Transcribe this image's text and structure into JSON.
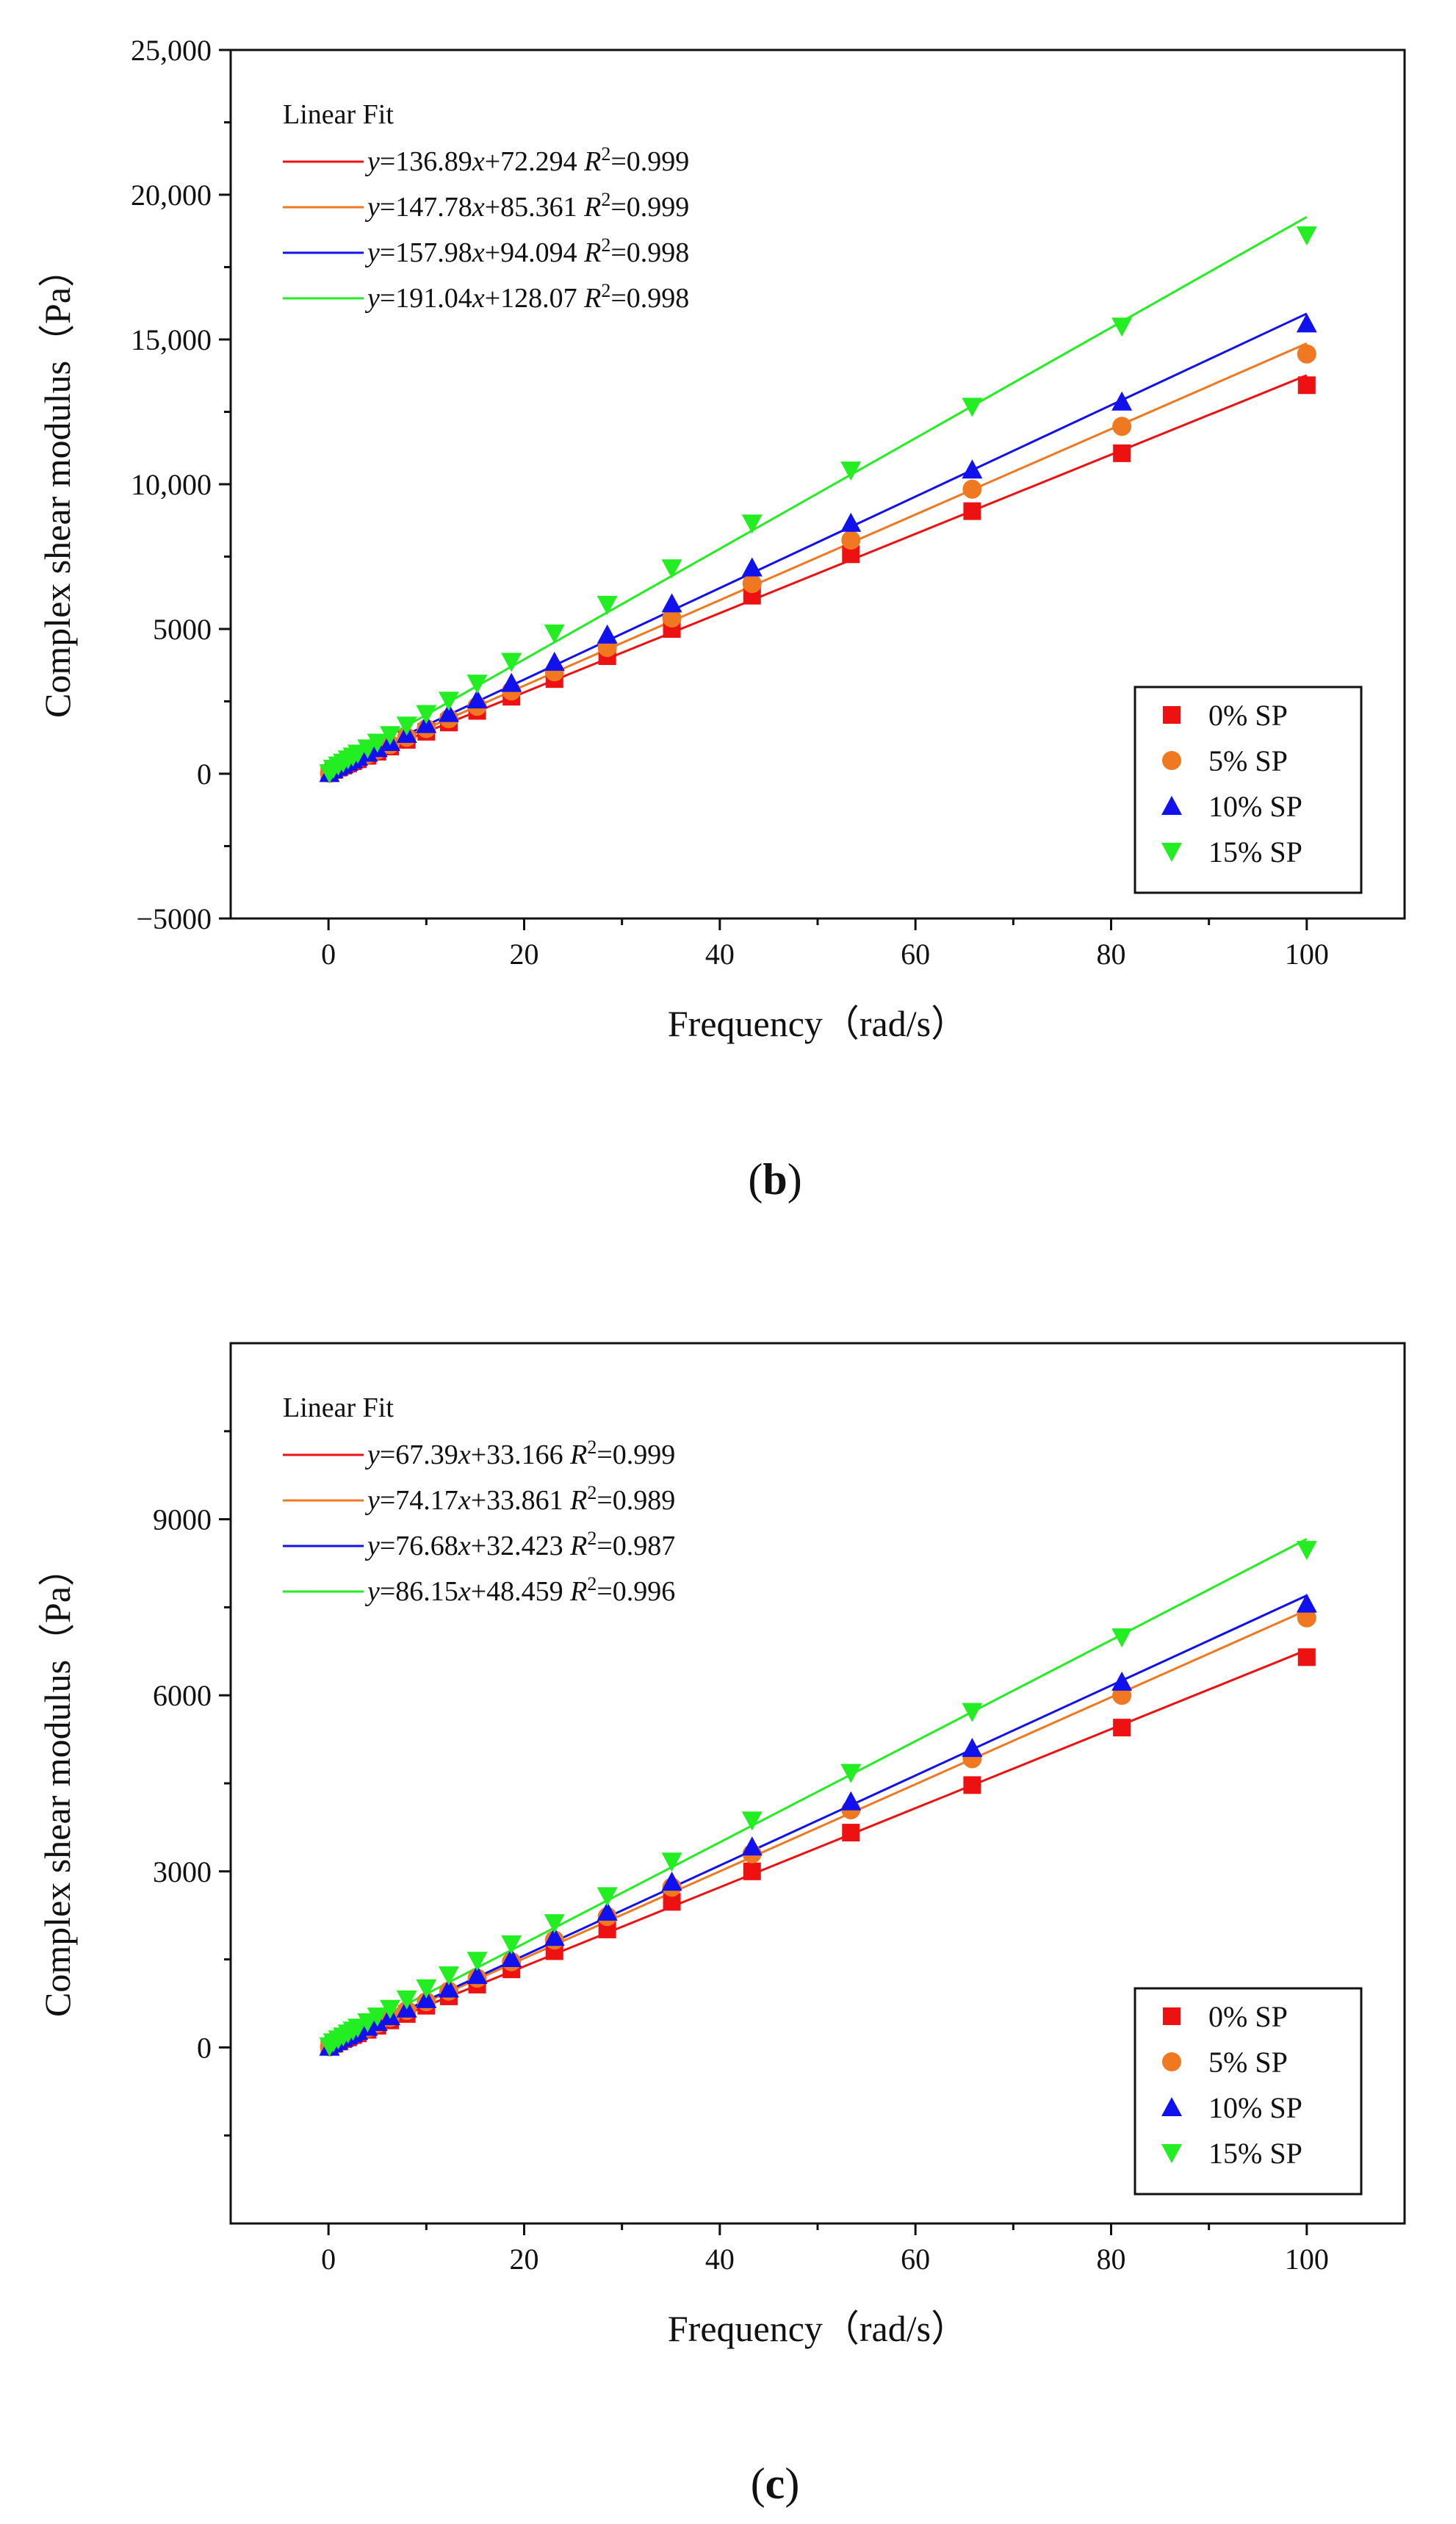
{
  "chart_data": [
    {
      "type": "scatter",
      "panel_label": "b",
      "xlabel": "Frequency（rad/s）",
      "ylabel": "Complex shear modulus（Pa）",
      "xlim": [
        -10,
        110
      ],
      "ylim": [
        -5000,
        25000
      ],
      "x_ticks": [
        0,
        20,
        40,
        60,
        80,
        100
      ],
      "x_tick_labels": [
        "0",
        "20",
        "40",
        "60",
        "80",
        "100"
      ],
      "y_ticks": [
        -5000,
        0,
        5000,
        10000,
        15000,
        20000,
        25000
      ],
      "y_tick_labels": [
        "−5000",
        "0",
        "5000",
        "10,000",
        "15,000",
        "20,000",
        "25,000"
      ],
      "x": [
        0.1,
        0.5,
        1,
        1.5,
        2,
        2.5,
        3,
        4,
        5,
        6.3,
        8,
        10,
        12.3,
        15.2,
        18.7,
        23.1,
        28.5,
        35.1,
        43.3,
        53.4,
        65.8,
        81.1,
        100
      ],
      "series": [
        {
          "name": "0% SP",
          "color": "#ee1111",
          "marker": "square",
          "slope": 136.89,
          "intercept": 72.294,
          "values": [
            20,
            130,
            210,
            280,
            350,
            430,
            500,
            620,
            760,
            940,
            1170,
            1450,
            1770,
            2170,
            2660,
            3270,
            4060,
            5000,
            6150,
            7580,
            9070,
            11070,
            13420
          ]
        },
        {
          "name": "5% SP",
          "color": "#f07820",
          "marker": "circle",
          "slope": 147.78,
          "intercept": 85.361,
          "values": [
            20,
            140,
            220,
            300,
            380,
            460,
            540,
            670,
            820,
            1010,
            1260,
            1560,
            1900,
            2330,
            2860,
            3520,
            4360,
            5380,
            6570,
            8070,
            9830,
            12000,
            14500
          ]
        },
        {
          "name": "10% SP",
          "color": "#1111ee",
          "marker": "triangle",
          "slope": 157.98,
          "intercept": 94.094,
          "values": [
            20,
            150,
            240,
            320,
            410,
            490,
            580,
            720,
            880,
            1090,
            1370,
            1710,
            2090,
            2560,
            3130,
            3860,
            4800,
            5880,
            7120,
            8660,
            10500,
            12850,
            15550
          ]
        },
        {
          "name": "15% SP",
          "color": "#22ee22",
          "marker": "triangle-down",
          "slope": 191.04,
          "intercept": 128.07,
          "values": [
            20,
            180,
            290,
            390,
            500,
            600,
            700,
            880,
            1080,
            1340,
            1670,
            2070,
            2530,
            3120,
            3870,
            4850,
            5840,
            7100,
            8650,
            10480,
            12680,
            15450,
            18600
          ]
        }
      ],
      "fit_title": "Linear Fit",
      "fit_equations": [
        {
          "y_label": "y",
          "eq": "=136.89",
          "x_label": "x",
          "rest": "+72.294",
          "r_label": "R",
          "r_sup": "2",
          "r_value": "=0.999"
        },
        {
          "y_label": "y",
          "eq": "=147.78",
          "x_label": "x",
          "rest": "+85.361",
          "r_label": "R",
          "r_sup": "2",
          "r_value": "=0.999"
        },
        {
          "y_label": "y",
          "eq": "=157.98",
          "x_label": "x",
          "rest": "+94.094",
          "r_label": "R",
          "r_sup": "2",
          "r_value": "=0.998"
        },
        {
          "y_label": "y",
          "eq": "=191.04",
          "x_label": "x",
          "rest": "+128.07",
          "r_label": "R",
          "r_sup": "2",
          "r_value": "=0.998"
        }
      ],
      "legend_position": "bottom-right",
      "grid": false
    },
    {
      "type": "scatter",
      "panel_label": "c",
      "xlabel": "Frequency（rad/s）",
      "ylabel": "Complex shear modulus（Pa）",
      "xlim": [
        -10,
        110
      ],
      "ylim": [
        -3000,
        12000
      ],
      "x_ticks": [
        0,
        20,
        40,
        60,
        80,
        100
      ],
      "x_tick_labels": [
        "0",
        "20",
        "40",
        "60",
        "80",
        "100"
      ],
      "y_ticks": [
        0,
        3000,
        6000,
        9000
      ],
      "y_tick_labels": [
        "0",
        "3000",
        "6000",
        "9000"
      ],
      "x": [
        0.1,
        0.5,
        1,
        1.5,
        2,
        2.5,
        3,
        4,
        5,
        6.3,
        8,
        10,
        12.3,
        15.2,
        18.7,
        23.1,
        28.5,
        35.1,
        43.3,
        53.4,
        65.8,
        81.1,
        100
      ],
      "series": [
        {
          "name": "0% SP",
          "color": "#ee1111",
          "marker": "square",
          "slope": 67.39,
          "intercept": 33.166,
          "values": [
            10,
            60,
            100,
            140,
            170,
            210,
            240,
            300,
            370,
            460,
            570,
            710,
            870,
            1070,
            1330,
            1640,
            2010,
            2480,
            3000,
            3660,
            4470,
            5450,
            6650
          ]
        },
        {
          "name": "5% SP",
          "color": "#f07820",
          "marker": "circle",
          "slope": 74.17,
          "intercept": 33.861,
          "values": [
            10,
            70,
            110,
            150,
            190,
            230,
            270,
            330,
            410,
            510,
            630,
            780,
            960,
            1180,
            1460,
            1830,
            2230,
            2730,
            3300,
            4050,
            4920,
            6000,
            7320
          ]
        },
        {
          "name": "10% SP",
          "color": "#1111ee",
          "marker": "triangle",
          "slope": 76.68,
          "intercept": 32.423,
          "values": [
            10,
            70,
            110,
            160,
            200,
            240,
            280,
            350,
            430,
            530,
            660,
            820,
            1000,
            1230,
            1520,
            1880,
            2310,
            2820,
            3420,
            4190,
            5100,
            6230,
            7560
          ]
        },
        {
          "name": "15% SP",
          "color": "#22ee22",
          "marker": "triangle-down",
          "slope": 86.15,
          "intercept": 48.459,
          "values": [
            20,
            90,
            140,
            190,
            240,
            290,
            340,
            430,
            530,
            660,
            820,
            1010,
            1230,
            1480,
            1760,
            2120,
            2580,
            3170,
            3870,
            4680,
            5720,
            6990,
            8480
          ]
        }
      ],
      "fit_title": "Linear Fit",
      "fit_equations": [
        {
          "y_label": "y",
          "eq": "=67.39",
          "x_label": "x",
          "rest": "+33.166",
          "r_label": "R",
          "r_sup": "2",
          "r_value": "=0.999"
        },
        {
          "y_label": "y",
          "eq": "=74.17",
          "x_label": "x",
          "rest": "+33.861",
          "r_label": "R",
          "r_sup": "2",
          "r_value": "=0.989"
        },
        {
          "y_label": "y",
          "eq": "=76.68",
          "x_label": "x",
          "rest": "+32.423",
          "r_label": "R",
          "r_sup": "2",
          "r_value": "=0.987"
        },
        {
          "y_label": "y",
          "eq": "=86.15",
          "x_label": "x",
          "rest": "+48.459",
          "r_label": "R",
          "r_sup": "2",
          "r_value": "=0.996"
        }
      ],
      "legend_position": "bottom-right",
      "grid": false
    }
  ]
}
